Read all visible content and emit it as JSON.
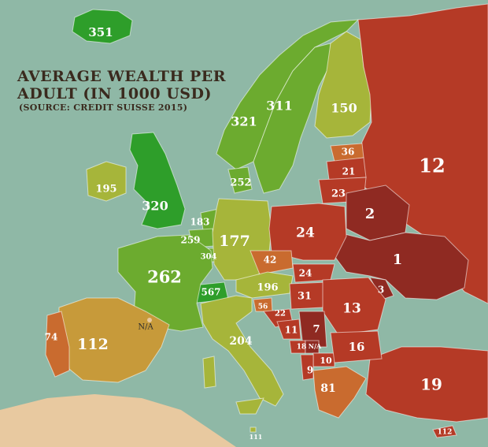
{
  "map": {
    "title": "Average wealth per adult (in 1000 USD)",
    "source": "(Source: Credit Suisse 2015)",
    "colors": {
      "sea": "#8fb8a6",
      "very_high": "#2e9e2a",
      "high": "#6cab2f",
      "upper_mid": "#a6b53a",
      "mid": "#c79a3a",
      "low_mid": "#c96b2f",
      "low": "#b53a26",
      "very_low": "#8f2a22",
      "no_data": "#e8c9a0"
    },
    "countries": {
      "iceland": "351",
      "norway": "321",
      "sweden": "311",
      "finland": "150",
      "estonia": "36",
      "latvia": "21",
      "lithuania": "23",
      "russia": "12",
      "belarus": "2",
      "ukraine": "1",
      "moldova": "3",
      "ireland": "195",
      "uk": "320",
      "denmark": "252",
      "netherlands": "183",
      "belgium": "259",
      "luxembourg": "304",
      "germany": "177",
      "poland": "24",
      "czechia": "42",
      "slovakia": "24",
      "austria": "196",
      "switzerland": "567",
      "france": "262",
      "hungary": "31",
      "romania": "13",
      "slovenia": "56",
      "croatia": "22",
      "bosnia": "11",
      "serbia": "7",
      "montenegro": "18",
      "kosovo": "N/A",
      "macedonia": "10",
      "albania": "9",
      "bulgaria": "16",
      "greece": "81",
      "turkey": "19",
      "italy": "204",
      "spain": "112",
      "portugal": "74",
      "andorra": "N/A",
      "malta": "111",
      "cyprus": "112"
    }
  }
}
